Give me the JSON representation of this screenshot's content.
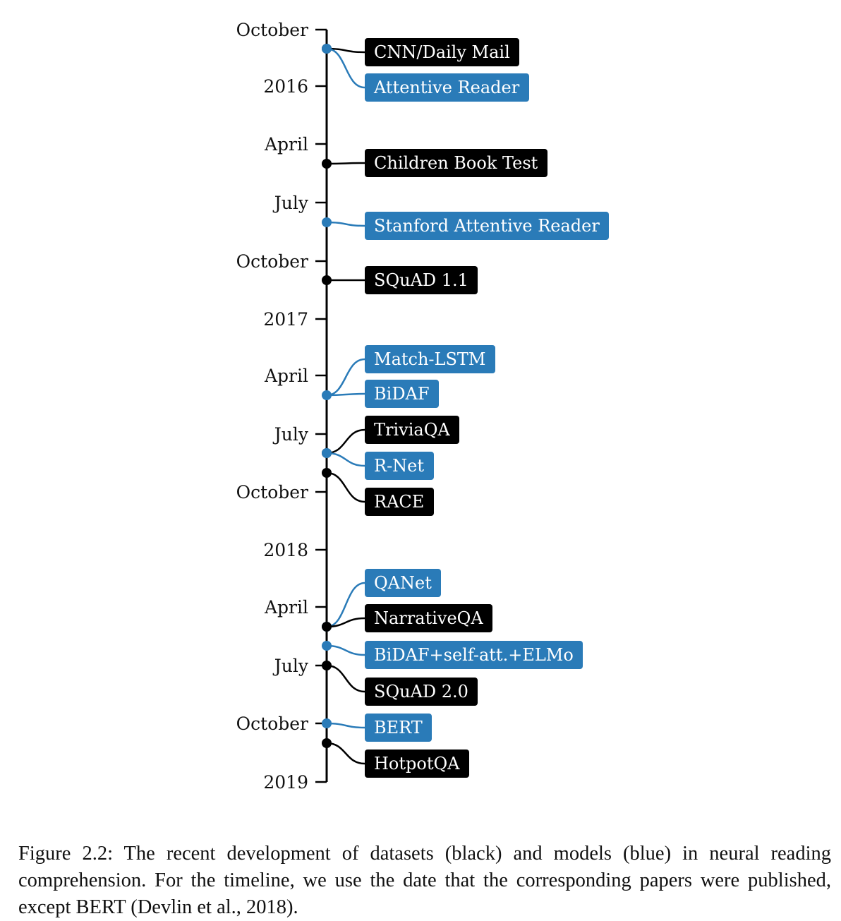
{
  "colors": {
    "dataset": "#000000",
    "model": "#2a7bb8",
    "axis": "#000000"
  },
  "axis_ticks": [
    "October",
    "2016",
    "April",
    "July",
    "October",
    "2017",
    "April",
    "July",
    "October",
    "2018",
    "April",
    "July",
    "October",
    "2019"
  ],
  "events": [
    {
      "kind": "dataset",
      "label": "CNN/Daily Mail",
      "date": "2015-11"
    },
    {
      "kind": "model",
      "label": "Attentive Reader",
      "date": "2015-11"
    },
    {
      "kind": "dataset",
      "label": "Children Book Test",
      "date": "2016-05"
    },
    {
      "kind": "model",
      "label": "Stanford Attentive Reader",
      "date": "2016-08"
    },
    {
      "kind": "dataset",
      "label": "SQuAD 1.1",
      "date": "2016-11"
    },
    {
      "kind": "model",
      "label": "Match-LSTM",
      "date": "2017-05"
    },
    {
      "kind": "model",
      "label": "BiDAF",
      "date": "2017-05"
    },
    {
      "kind": "dataset",
      "label": "TriviaQA",
      "date": "2017-08"
    },
    {
      "kind": "model",
      "label": "R-Net",
      "date": "2017-08"
    },
    {
      "kind": "dataset",
      "label": "RACE",
      "date": "2017-09"
    },
    {
      "kind": "model",
      "label": "QANet",
      "date": "2018-05"
    },
    {
      "kind": "dataset",
      "label": "NarrativeQA",
      "date": "2018-05"
    },
    {
      "kind": "model",
      "label": "BiDAF+self-att.+ELMo",
      "date": "2018-06"
    },
    {
      "kind": "dataset",
      "label": "SQuAD 2.0",
      "date": "2018-07"
    },
    {
      "kind": "model",
      "label": "BERT",
      "date": "2018-10"
    },
    {
      "kind": "dataset",
      "label": "HotpotQA",
      "date": "2018-11"
    }
  ],
  "caption": "Figure 2.2: The recent development of datasets (black) and models (blue) in neural reading comprehension. For the timeline, we use the date that the corresponding papers were published, except BERT (Devlin et al., 2018)."
}
